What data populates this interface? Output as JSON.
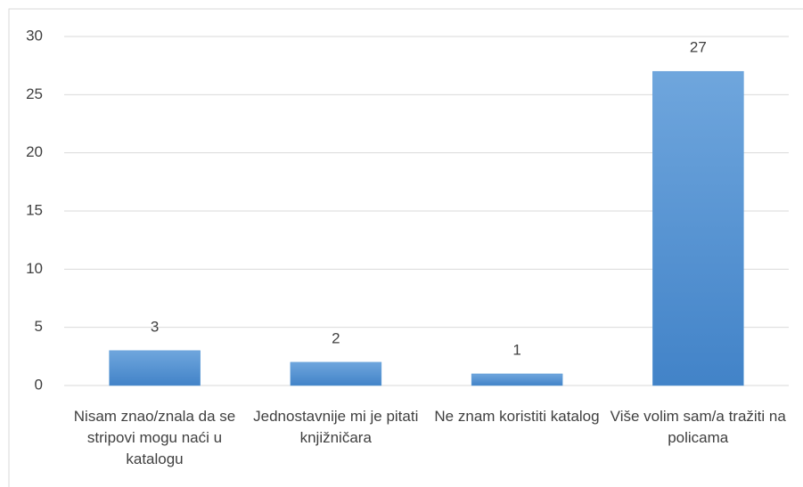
{
  "chart_data": {
    "type": "bar",
    "categories": [
      "Nisam znao/znala da se stripovi mogu naći u katalogu",
      "Jednostavnije mi je pitati knjižničara",
      "Ne znam koristiti katalog",
      "Više volim sam/a tražiti na policama"
    ],
    "values": [
      3,
      2,
      1,
      27
    ],
    "color": "#5b9bd5",
    "ylim": [
      0,
      30
    ],
    "yticks": [
      0,
      5,
      10,
      15,
      20,
      25,
      30
    ],
    "grid": true
  }
}
